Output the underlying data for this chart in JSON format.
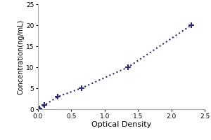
{
  "x": [
    0.02,
    0.1,
    0.3,
    0.65,
    1.35,
    2.3
  ],
  "y": [
    0.2,
    1.0,
    3.0,
    5.0,
    10.0,
    20.0
  ],
  "xlabel": "Optical Density",
  "ylabel": "Concentration(ng/mL)",
  "xlim": [
    0,
    2.5
  ],
  "ylim": [
    0,
    25
  ],
  "xticks": [
    0,
    0.5,
    1,
    1.5,
    2,
    2.5
  ],
  "yticks": [
    0,
    5,
    10,
    15,
    20,
    25
  ],
  "line_color": "#2b2b6e",
  "marker_color": "#2b2b6e",
  "marker": "+",
  "marker_size": 6,
  "marker_edge_width": 1.5,
  "line_style": "dotted",
  "line_width": 1.5,
  "xlabel_fontsize": 8,
  "ylabel_fontsize": 7,
  "tick_fontsize": 6.5,
  "background_color": "#ffffff",
  "spine_color": "#aaaaaa"
}
